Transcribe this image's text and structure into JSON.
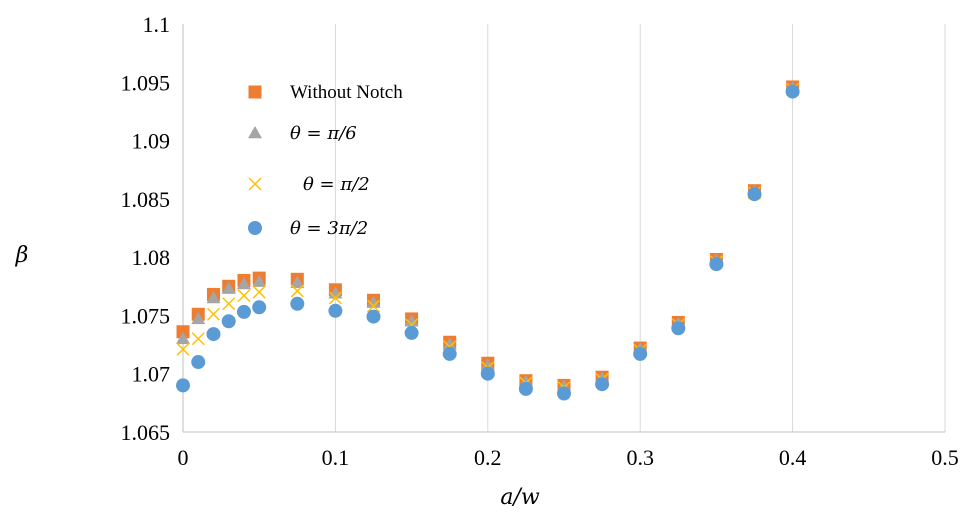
{
  "chart_data": {
    "type": "scatter",
    "xlabel": "a/w",
    "ylabel": "β",
    "xlim": [
      0,
      0.5
    ],
    "ylim": [
      1.065,
      1.1
    ],
    "x_ticks": [
      "0",
      "0.1",
      "0.2",
      "0.3",
      "0.4",
      "0.5"
    ],
    "y_ticks": [
      "1.065",
      "1.07",
      "1.075",
      "1.08",
      "1.085",
      "1.09",
      "1.095",
      "1.1"
    ],
    "grid": "vertical",
    "legend_position": "upper-left",
    "series": [
      {
        "name": "Without Notch",
        "marker": "square",
        "color": "#ED7D31",
        "x": [
          0,
          0.01,
          0.02,
          0.03,
          0.04,
          0.05,
          0.075,
          0.1,
          0.125,
          0.15,
          0.175,
          0.2,
          0.225,
          0.25,
          0.275,
          0.3,
          0.325,
          0.35,
          0.375,
          0.4
        ],
        "y": [
          1.0736,
          1.0751,
          1.0768,
          1.0775,
          1.078,
          1.0782,
          1.0781,
          1.0772,
          1.0763,
          1.0747,
          1.0727,
          1.0709,
          1.0694,
          1.069,
          1.0697,
          1.0722,
          1.0744,
          1.0798,
          1.0857,
          1.0946
        ]
      },
      {
        "name": "θ = π/6",
        "marker": "triangle",
        "color": "#A5A5A5",
        "x": [
          0,
          0.01,
          0.02,
          0.03,
          0.04,
          0.05,
          0.075,
          0.1,
          0.125,
          0.15,
          0.175,
          0.2,
          0.225,
          0.25,
          0.275,
          0.3,
          0.325,
          0.35,
          0.375,
          0.4
        ],
        "y": [
          1.073,
          1.0747,
          1.0765,
          1.0773,
          1.0777,
          1.0779,
          1.0778,
          1.0769,
          1.0761,
          1.0745,
          1.0725,
          1.0707,
          1.0693,
          1.0689,
          1.0696,
          1.0721,
          1.0743,
          1.0797,
          1.0856,
          1.0945
        ]
      },
      {
        "name": "θ = π/2",
        "marker": "x",
        "color": "#FFC000",
        "x": [
          0,
          0.01,
          0.02,
          0.03,
          0.04,
          0.05,
          0.075,
          0.1,
          0.125,
          0.15,
          0.175,
          0.2,
          0.225,
          0.25,
          0.275,
          0.3,
          0.325,
          0.35,
          0.375,
          0.4
        ],
        "y": [
          1.0721,
          1.073,
          1.0751,
          1.076,
          1.0767,
          1.077,
          1.0771,
          1.0765,
          1.0758,
          1.0742,
          1.0723,
          1.0705,
          1.0692,
          1.0688,
          1.0695,
          1.072,
          1.0742,
          1.0796,
          1.0855,
          1.0944
        ]
      },
      {
        "name": "θ = 3π/2",
        "marker": "circle",
        "color": "#5B9BD5",
        "x": [
          0,
          0.01,
          0.02,
          0.03,
          0.04,
          0.05,
          0.075,
          0.1,
          0.125,
          0.15,
          0.175,
          0.2,
          0.225,
          0.25,
          0.275,
          0.3,
          0.325,
          0.35,
          0.375,
          0.4
        ],
        "y": [
          1.069,
          1.071,
          1.0734,
          1.0745,
          1.0753,
          1.0757,
          1.076,
          1.0754,
          1.0749,
          1.0735,
          1.0717,
          1.07,
          1.0687,
          1.0683,
          1.0691,
          1.0717,
          1.0739,
          1.0794,
          1.0854,
          1.0942
        ]
      }
    ]
  }
}
